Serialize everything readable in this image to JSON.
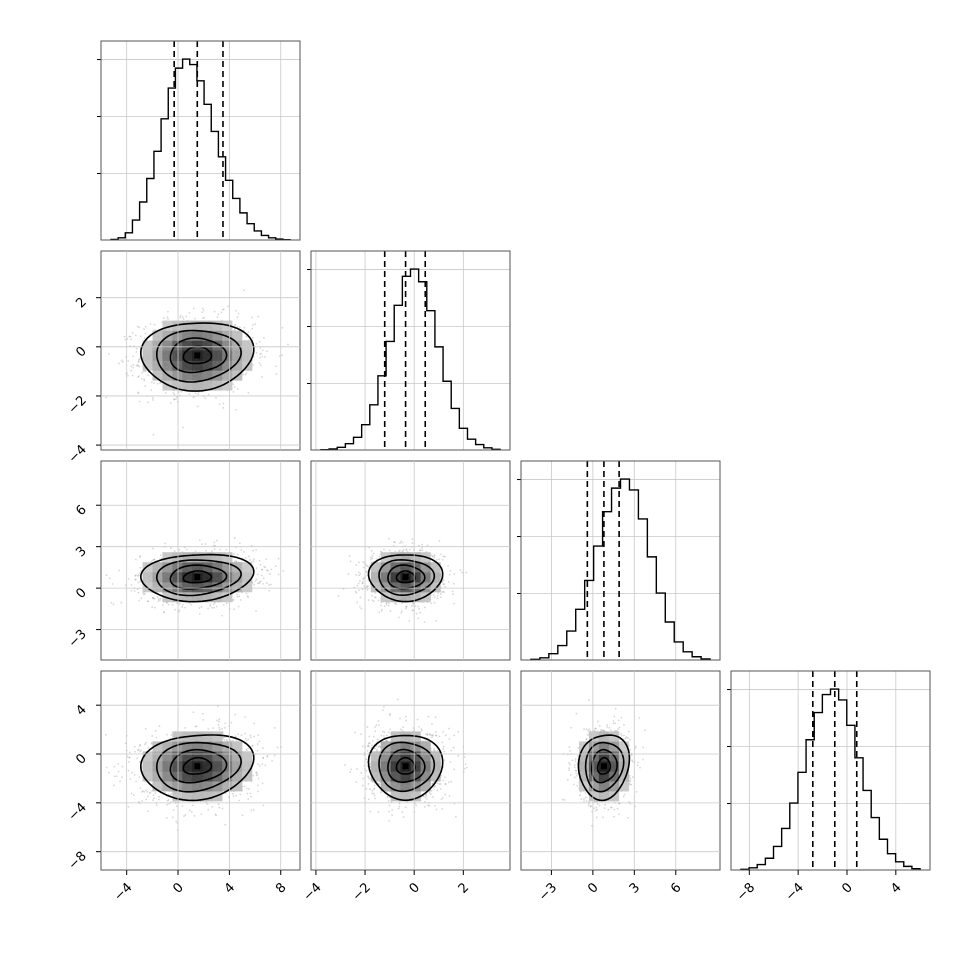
{
  "chart_data": {
    "type": "corner",
    "title": "",
    "grid": true,
    "colors": {
      "points": "#8c8c8c",
      "density": "#000000",
      "lines": "#000000",
      "grid": "#c8c8c8"
    },
    "parameters": [
      {
        "id": "p0",
        "range": [
          -6,
          9.5
        ],
        "ticks": [
          -4,
          0,
          4,
          8
        ],
        "tick_labels": [
          "−4",
          "0",
          "4",
          "8"
        ],
        "hist_peak": 1.0,
        "hist": [
          0.003,
          0.012,
          0.04,
          0.11,
          0.21,
          0.34,
          0.49,
          0.67,
          0.84,
          0.95,
          1.0,
          0.97,
          0.88,
          0.75,
          0.6,
          0.46,
          0.33,
          0.23,
          0.15,
          0.09,
          0.05,
          0.025,
          0.012,
          0.005,
          0.002
        ],
        "quantiles": [
          -0.3,
          1.5,
          3.5
        ]
      },
      {
        "id": "p1",
        "range": [
          -4.2,
          3.9
        ],
        "ticks": [
          -4,
          -2,
          0,
          2
        ],
        "tick_labels": [
          "−4",
          "−2",
          "0",
          "2"
        ],
        "hist_peak": 1.0,
        "hist": [
          0.002,
          0.006,
          0.015,
          0.035,
          0.07,
          0.14,
          0.25,
          0.41,
          0.6,
          0.8,
          0.96,
          1.0,
          0.93,
          0.77,
          0.57,
          0.38,
          0.23,
          0.12,
          0.06,
          0.03,
          0.012,
          0.004
        ],
        "quantiles": [
          -1.2,
          -0.35,
          0.45
        ]
      },
      {
        "id": "p2",
        "range": [
          -5.2,
          9.2
        ],
        "ticks": [
          -3,
          0,
          3,
          6
        ],
        "tick_labels": [
          "−3",
          "0",
          "3",
          "6"
        ],
        "hist_peak": 1.0,
        "hist": [
          0.004,
          0.012,
          0.035,
          0.08,
          0.16,
          0.28,
          0.44,
          0.63,
          0.82,
          0.95,
          1.0,
          0.94,
          0.78,
          0.57,
          0.37,
          0.21,
          0.1,
          0.045,
          0.018,
          0.006
        ],
        "quantiles": [
          -0.4,
          0.8,
          1.9
        ]
      },
      {
        "id": "p3",
        "range": [
          -9.5,
          6.8
        ],
        "ticks": [
          -8,
          -4,
          0,
          4
        ],
        "tick_labels": [
          "−8",
          "−4",
          "0",
          "4"
        ],
        "hist_peak": 1.0,
        "hist": [
          0.004,
          0.012,
          0.03,
          0.065,
          0.13,
          0.23,
          0.37,
          0.54,
          0.72,
          0.87,
          0.97,
          1.0,
          0.94,
          0.8,
          0.62,
          0.44,
          0.29,
          0.17,
          0.09,
          0.045,
          0.02,
          0.007
        ],
        "quantiles": [
          -2.8,
          -1.0,
          0.8
        ]
      }
    ],
    "pairs": [
      {
        "x": "p0",
        "y": "p1",
        "center": [
          1.5,
          -0.35
        ],
        "spread": [
          2.1,
          0.72
        ],
        "tilt": 0.05
      },
      {
        "x": "p0",
        "y": "p2",
        "center": [
          1.5,
          0.8
        ],
        "spread": [
          2.1,
          0.88
        ],
        "tilt": 0.1
      },
      {
        "x": "p1",
        "y": "p2",
        "center": [
          -0.35,
          0.8
        ],
        "spread": [
          0.72,
          0.88
        ],
        "tilt": 0.0
      },
      {
        "x": "p0",
        "y": "p3",
        "center": [
          1.5,
          -1.0
        ],
        "spread": [
          2.1,
          1.38
        ],
        "tilt": 0.12
      },
      {
        "x": "p1",
        "y": "p3",
        "center": [
          -0.35,
          -1.0
        ],
        "spread": [
          0.72,
          1.38
        ],
        "tilt": 0.0
      },
      {
        "x": "p2",
        "y": "p3",
        "center": [
          0.8,
          -1.0
        ],
        "spread": [
          0.88,
          1.38
        ],
        "tilt": 0.1
      }
    ]
  }
}
